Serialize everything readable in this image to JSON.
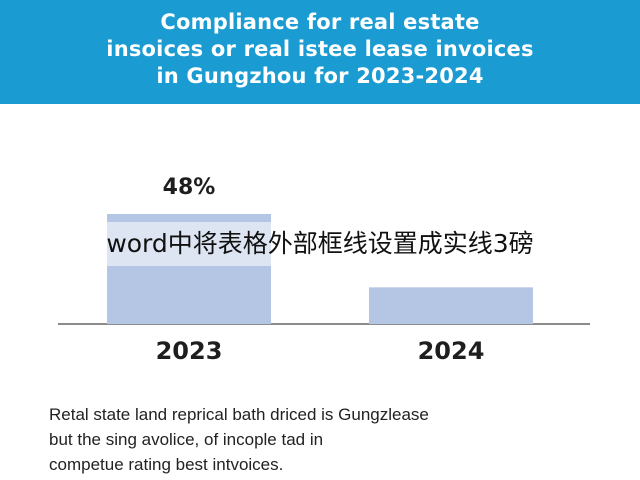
{
  "chart_data": {
    "type": "bar",
    "title_lines": [
      "Compliance for real estate",
      "insoices or real istee lease invoices",
      "in Gungzhou for 2023-2024"
    ],
    "categories": [
      "2023",
      "2024"
    ],
    "values": [
      48,
      16
    ],
    "value_labels": [
      "48%",
      ""
    ],
    "ylim": [
      0,
      55
    ],
    "grid": false,
    "bar_color": "#b4c6e4"
  },
  "overlay_text": "word中将表格外部框线设置成实线3磅",
  "caption_lines": [
    "Retal state land reprical bath driced is Gungzlease",
    "but the sing avolice, of incople tad in",
    "competue rating best intvoices."
  ],
  "colors": {
    "banner": "#1a9bd1",
    "axis": "#666666",
    "text": "#1e1e1e"
  }
}
